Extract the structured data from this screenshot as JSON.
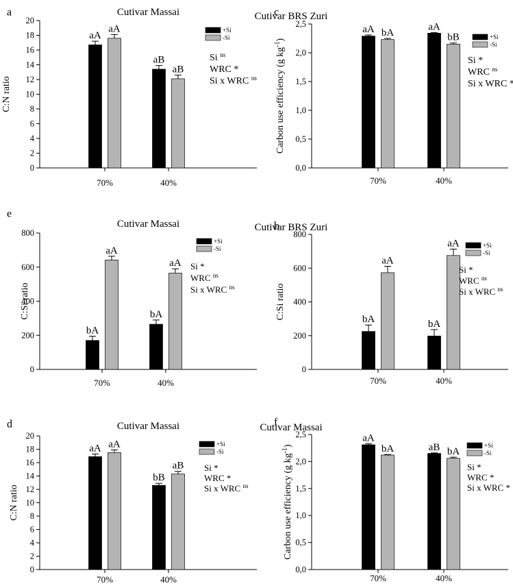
{
  "colors": {
    "with_si": "#000000",
    "without_si": "#b4b4b4",
    "axis": "#000000"
  },
  "chart_data": [
    {
      "panel": "a",
      "type": "bar",
      "title": "Cutivar Massai",
      "ylabel": "C:N ratio",
      "xlabel": "",
      "categories": [
        "70%",
        "40%"
      ],
      "ylim": [
        0,
        20
      ],
      "yticks": [
        0,
        2,
        4,
        6,
        8,
        10,
        12,
        14,
        16,
        18,
        20
      ],
      "series": [
        {
          "name": "+Si",
          "values": [
            16.7,
            13.4
          ],
          "errors": [
            0.5,
            0.5
          ],
          "labels": [
            "aA",
            "aB"
          ]
        },
        {
          "name": "-Si",
          "values": [
            17.6,
            12.1
          ],
          "errors": [
            0.5,
            0.5
          ],
          "labels": [
            "aA",
            "aB"
          ]
        }
      ],
      "stats": [
        {
          "base": "Si",
          "sup": "ns"
        },
        {
          "base": "WRC",
          "sup": "*"
        },
        {
          "base": "Si x WRC",
          "sup": "ns"
        }
      ]
    },
    {
      "panel": "b",
      "type": "bar",
      "title": "Cutivar BRS Zuri",
      "ylabel": "C:Si ratio",
      "xlabel": "",
      "categories": [
        "70%",
        "40%"
      ],
      "ylim": [
        0,
        800
      ],
      "yticks": [
        0,
        200,
        400,
        600,
        800
      ],
      "series": [
        {
          "name": "+Si",
          "values": [
            225,
            198
          ],
          "errors": [
            38,
            38
          ],
          "labels": [
            "bA",
            "bA"
          ]
        },
        {
          "name": "-Si",
          "values": [
            573,
            675
          ],
          "errors": [
            38,
            38
          ],
          "labels": [
            "aA",
            "aA"
          ]
        }
      ],
      "stats": [
        {
          "base": "Si",
          "sup": "*"
        },
        {
          "base": "WRC",
          "sup": "ns"
        },
        {
          "base": "Si x WRC",
          "sup": "ns"
        }
      ]
    },
    {
      "panel": "c",
      "type": "bar",
      "title": "Cutivar BRS Zuri",
      "ylabel": "Carbon use efficiency (g kg",
      "ylabel_sup": "-1",
      "ylabel_end": ")",
      "xlabel": "",
      "categories": [
        "70%",
        "40%"
      ],
      "ylim": [
        0,
        2.5
      ],
      "yticks": [
        0,
        0.5,
        1.0,
        1.5,
        2.0,
        2.5
      ],
      "ytick_labels": [
        "0,0",
        "0,5",
        "1,0",
        "1,5",
        "2,0",
        "2,5"
      ],
      "series": [
        {
          "name": "+Si",
          "values": [
            2.29,
            2.34
          ],
          "errors": [
            0.02,
            0.01
          ],
          "labels": [
            "aA",
            "aA"
          ]
        },
        {
          "name": "-Si",
          "values": [
            2.23,
            2.15
          ],
          "errors": [
            0.02,
            0.02
          ],
          "labels": [
            "bA",
            "bB"
          ]
        }
      ],
      "stats": [
        {
          "base": "Si",
          "sup": "*"
        },
        {
          "base": "WRC",
          "sup": "ns"
        },
        {
          "base": "Si x WRC",
          "sup": "*"
        }
      ]
    },
    {
      "panel": "d",
      "type": "bar",
      "title": "Cutivar Massai",
      "ylabel": "C:N ratio",
      "xlabel": "",
      "categories": [
        "70%",
        "40%"
      ],
      "ylim": [
        0,
        20
      ],
      "yticks": [
        0,
        2,
        4,
        6,
        8,
        10,
        12,
        14,
        16,
        18,
        20
      ],
      "series": [
        {
          "name": "+Si",
          "values": [
            16.9,
            12.6
          ],
          "errors": [
            0.4,
            0.3
          ],
          "labels": [
            "aA",
            "bB"
          ]
        },
        {
          "name": "-Si",
          "values": [
            17.5,
            14.3
          ],
          "errors": [
            0.4,
            0.4
          ],
          "labels": [
            "aA",
            "aB"
          ]
        }
      ],
      "stats": [
        {
          "base": "Si",
          "sup": "*"
        },
        {
          "base": "WRC",
          "sup": "*"
        },
        {
          "base": "Si x WRC",
          "sup": "ns"
        }
      ]
    },
    {
      "panel": "e",
      "type": "bar",
      "title": "Cutivar Massai",
      "ylabel": "C:Si ratio",
      "xlabel": "",
      "categories": [
        "70%",
        "40%"
      ],
      "ylim": [
        0,
        800
      ],
      "yticks": [
        0,
        200,
        400,
        600,
        800
      ],
      "series": [
        {
          "name": "+Si",
          "values": [
            170,
            265
          ],
          "errors": [
            25,
            25
          ],
          "labels": [
            "bA",
            "bA"
          ]
        },
        {
          "name": "-Si",
          "values": [
            642,
            565
          ],
          "errors": [
            22,
            25
          ],
          "labels": [
            "aA",
            "aA"
          ]
        }
      ],
      "stats": [
        {
          "base": "Si",
          "sup": "*"
        },
        {
          "base": "WRC",
          "sup": "ns"
        },
        {
          "base": "Si x WRC",
          "sup": "ns"
        }
      ]
    },
    {
      "panel": "f",
      "type": "bar",
      "title": "Cutivar Massai",
      "ylabel": "Carbon use efficiency (g kg",
      "ylabel_sup": "-1",
      "ylabel_end": ")",
      "xlabel": "",
      "categories": [
        "70%",
        "40%"
      ],
      "ylim": [
        0,
        2.5
      ],
      "yticks": [
        0,
        0.5,
        1.0,
        1.5,
        2.0,
        2.5
      ],
      "ytick_labels": [
        "0,0",
        "0,5",
        "1,0",
        "1,5",
        "2,0",
        "2,5"
      ],
      "series": [
        {
          "name": "+Si",
          "values": [
            2.31,
            2.15
          ],
          "errors": [
            0.02,
            0.01
          ],
          "labels": [
            "aA",
            "aB"
          ]
        },
        {
          "name": "-Si",
          "values": [
            2.12,
            2.06
          ],
          "errors": [
            0.01,
            0.02
          ],
          "labels": [
            "bA",
            "bA"
          ]
        }
      ],
      "stats": [
        {
          "base": "Si",
          "sup": "*"
        },
        {
          "base": "WRC",
          "sup": "*"
        },
        {
          "base": "Si x WRC",
          "sup": "*"
        }
      ]
    }
  ]
}
